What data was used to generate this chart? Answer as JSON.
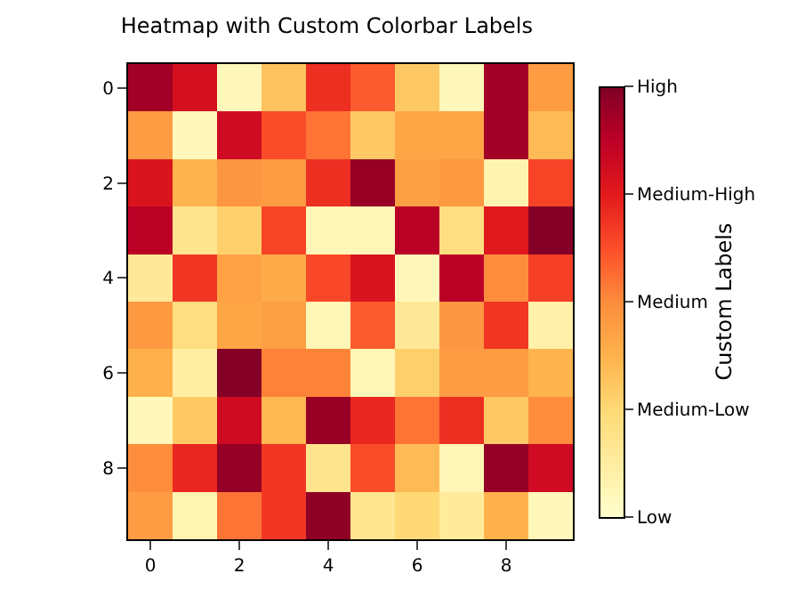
{
  "chart_data": {
    "type": "heatmap",
    "title": "Heatmap with Custom Colorbar Labels",
    "clabel": "Custom Labels",
    "categories": [
      "0",
      null,
      "2",
      null,
      "4",
      null,
      "6",
      null,
      "8",
      null
    ],
    "y_categories": [
      "0",
      null,
      "2",
      null,
      "4",
      null,
      "6",
      null,
      "8",
      null
    ],
    "cells": [
      [
        0.93,
        0.8,
        0.05,
        0.32,
        0.7,
        0.6,
        0.3,
        0.05,
        0.93,
        0.45
      ],
      [
        0.45,
        0.05,
        0.82,
        0.63,
        0.55,
        0.3,
        0.42,
        0.42,
        0.93,
        0.35
      ],
      [
        0.78,
        0.37,
        0.47,
        0.45,
        0.7,
        0.95,
        0.44,
        0.46,
        0.08,
        0.65
      ],
      [
        0.88,
        0.18,
        0.28,
        0.65,
        0.06,
        0.06,
        0.88,
        0.22,
        0.76,
        0.99
      ],
      [
        0.15,
        0.68,
        0.43,
        0.4,
        0.64,
        0.78,
        0.05,
        0.88,
        0.5,
        0.66
      ],
      [
        0.46,
        0.22,
        0.42,
        0.44,
        0.06,
        0.6,
        0.15,
        0.47,
        0.68,
        0.1
      ],
      [
        0.38,
        0.12,
        0.99,
        0.52,
        0.52,
        0.06,
        0.28,
        0.45,
        0.45,
        0.37
      ],
      [
        0.05,
        0.3,
        0.82,
        0.36,
        0.95,
        0.72,
        0.55,
        0.7,
        0.3,
        0.5
      ],
      [
        0.5,
        0.72,
        0.96,
        0.68,
        0.18,
        0.63,
        0.35,
        0.06,
        0.96,
        0.82
      ],
      [
        0.45,
        0.07,
        0.55,
        0.68,
        0.97,
        0.17,
        0.25,
        0.14,
        0.38,
        0.05
      ]
    ],
    "clim": [
      0,
      1
    ],
    "cticks": [
      {
        "value": 0,
        "label": "Low"
      },
      {
        "value": 0.25,
        "label": "Medium-Low"
      },
      {
        "value": 0.5,
        "label": "Medium"
      },
      {
        "value": 0.75,
        "label": "Medium-High"
      },
      {
        "value": 1,
        "label": "High"
      }
    ]
  }
}
